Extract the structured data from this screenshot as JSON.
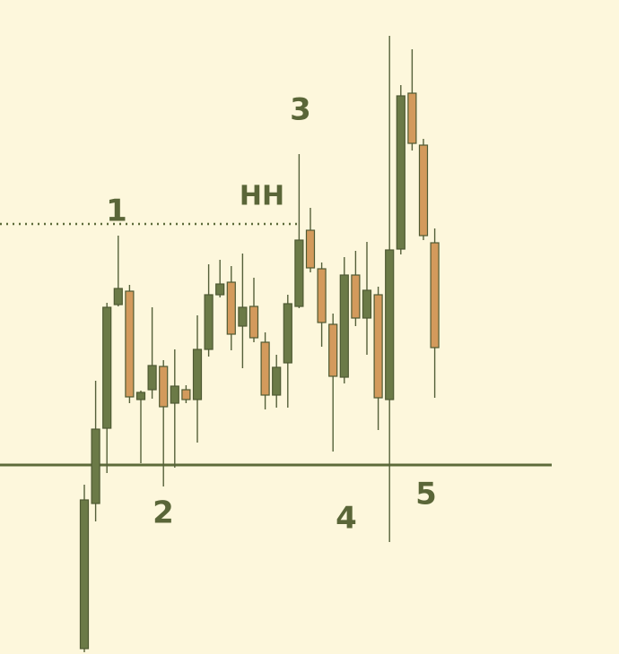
{
  "chart_data": {
    "type": "candlestick",
    "categories": [
      null,
      null,
      null,
      null,
      null,
      null,
      null,
      null,
      null,
      null,
      null,
      null,
      null,
      null,
      null,
      null,
      null,
      null,
      null,
      null,
      null,
      null,
      null,
      null,
      null,
      null,
      null,
      null,
      null,
      null,
      null,
      null
    ],
    "open": [
      6,
      168,
      252,
      390,
      405,
      284,
      295,
      321,
      280,
      295,
      284,
      340,
      401,
      415,
      366,
      388,
      348,
      289,
      325,
      388,
      473,
      430,
      368,
      309,
      423,
      375,
      401,
      284,
      452,
      626,
      568,
      459
    ],
    "close": [
      172,
      251,
      387,
      408,
      287,
      292,
      322,
      276,
      299,
      284,
      340,
      401,
      413,
      357,
      387,
      353,
      289,
      320,
      391,
      462,
      431,
      370,
      310,
      423,
      375,
      406,
      286,
      451,
      623,
      570,
      467,
      342
    ],
    "high": [
      189,
      305,
      392,
      467,
      412,
      294,
      387,
      328,
      340,
      300,
      378,
      435,
      440,
      433,
      447,
      420,
      359,
      334,
      401,
      558,
      498,
      437,
      380,
      443,
      450,
      460,
      410,
      690,
      635,
      675,
      575,
      475
    ],
    "low": [
      2,
      148,
      202,
      388,
      280,
      213,
      285,
      187,
      208,
      280,
      236,
      332,
      398,
      339,
      319,
      348,
      273,
      275,
      275,
      386,
      426,
      343,
      226,
      302,
      366,
      334,
      250,
      125,
      446,
      562,
      462,
      286
    ],
    "up_color": "#6b7a47",
    "down_color": "#d39a5c",
    "ylim": [
      0,
      730
    ],
    "levels": [
      {
        "value": 211,
        "style": "solid",
        "color": "#5d6b3a"
      },
      {
        "value": 480,
        "style": "dotted",
        "color": "#5d6b3a"
      }
    ],
    "annotations": [
      "1",
      "2",
      "HH",
      "3",
      "4",
      "5"
    ],
    "annotation_color": "#5a6638"
  }
}
